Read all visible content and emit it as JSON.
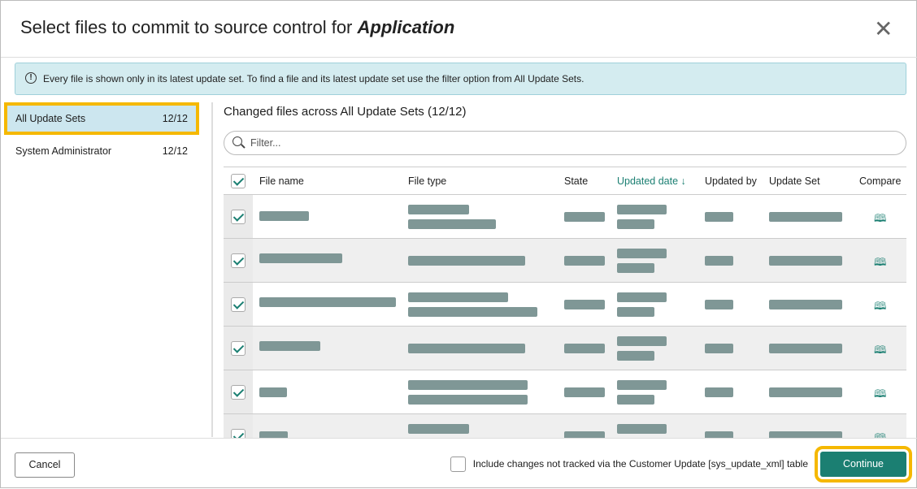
{
  "header": {
    "title_prefix": "Select files to commit to source control for",
    "title_app": "Application",
    "close_icon": "close-icon"
  },
  "info": {
    "icon": "exclamation-circle-icon",
    "text": "Every file is shown only in its latest update set. To find a file and its latest update set use the filter option from All Update Sets."
  },
  "sidebar": {
    "items": [
      {
        "label": "All Update Sets",
        "count": "12/12",
        "selected": true
      },
      {
        "label": "System Administrator",
        "count": "12/12",
        "selected": false
      }
    ]
  },
  "main": {
    "subtitle": "Changed files across All Update Sets",
    "subtitle_count": "(12/12)",
    "filter_placeholder": "Filter...",
    "columns": {
      "file_name": "File name",
      "file_type": "File type",
      "state": "State",
      "updated_date": "Updated date ↓",
      "updated_by": "Updated by",
      "update_set": "Update Set",
      "compare": "Compare"
    },
    "rows_checked": [
      true,
      true,
      true,
      true,
      true,
      true
    ],
    "compare_icon": "book-open-icon"
  },
  "footer": {
    "cancel": "Cancel",
    "include_label": "Include changes not tracked via the Customer Update [sys_update_xml] table",
    "include_checked": false,
    "continue": "Continue"
  },
  "colors": {
    "accent": "#1b7f72",
    "highlight": "#f5b800",
    "info_bg": "#d4ecf0",
    "redacted": "#7f9796"
  }
}
